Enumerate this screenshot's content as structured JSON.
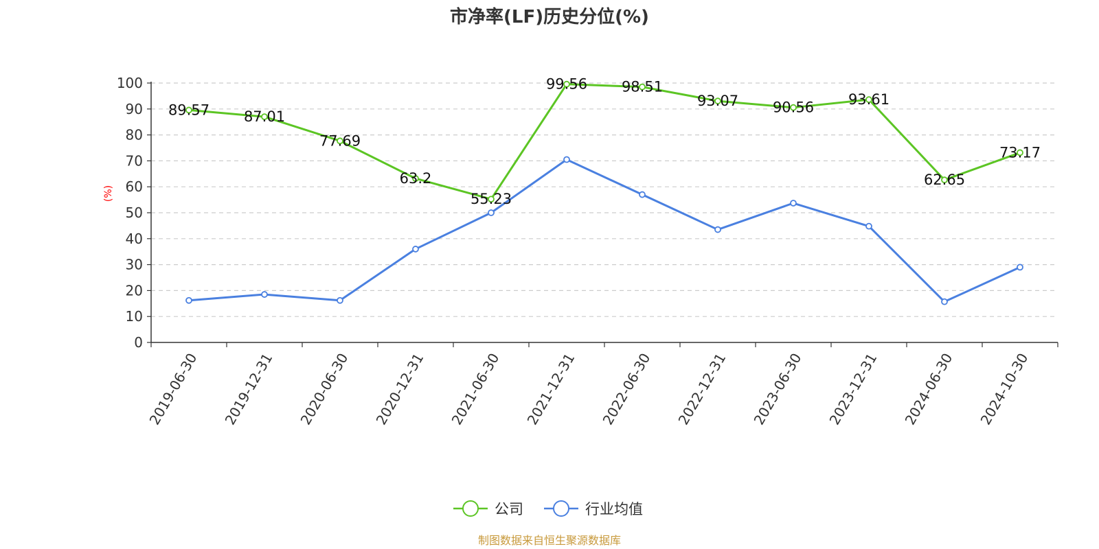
{
  "chart_data": {
    "type": "line",
    "title": "市净率(LF)历史分位(%)",
    "ylabel": "(%)",
    "xlabel": "",
    "categories": [
      "2019-06-30",
      "2019-12-31",
      "2020-06-30",
      "2020-12-31",
      "2021-06-30",
      "2021-12-31",
      "2022-06-30",
      "2022-12-31",
      "2023-06-30",
      "2023-12-31",
      "2024-06-30",
      "2024-10-30"
    ],
    "ylim": [
      0,
      100
    ],
    "yticks": [
      0,
      10,
      20,
      30,
      40,
      50,
      60,
      70,
      80,
      90,
      100
    ],
    "grid": true,
    "legend_position": "bottom",
    "series": [
      {
        "name": "公司",
        "color": "#5cc524",
        "values": [
          89.57,
          87.01,
          77.69,
          63.2,
          55.23,
          99.56,
          98.51,
          93.07,
          90.56,
          93.61,
          62.65,
          73.17
        ],
        "labels": [
          "89.57",
          "87.01",
          "77.69",
          "63.2",
          "55.23",
          "99.56",
          "98.51",
          "93.07",
          "90.56",
          "93.61",
          "62.65",
          "73.17"
        ],
        "show_labels": true
      },
      {
        "name": "行业均值",
        "color": "#4a80e0",
        "values": [
          16.2,
          18.5,
          16.2,
          36.0,
          50.0,
          70.5,
          57.0,
          43.5,
          53.7,
          44.8,
          15.7,
          29.0
        ],
        "show_labels": false
      }
    ]
  },
  "footer": {
    "source": "制图数据来自恒生聚源数据库"
  }
}
